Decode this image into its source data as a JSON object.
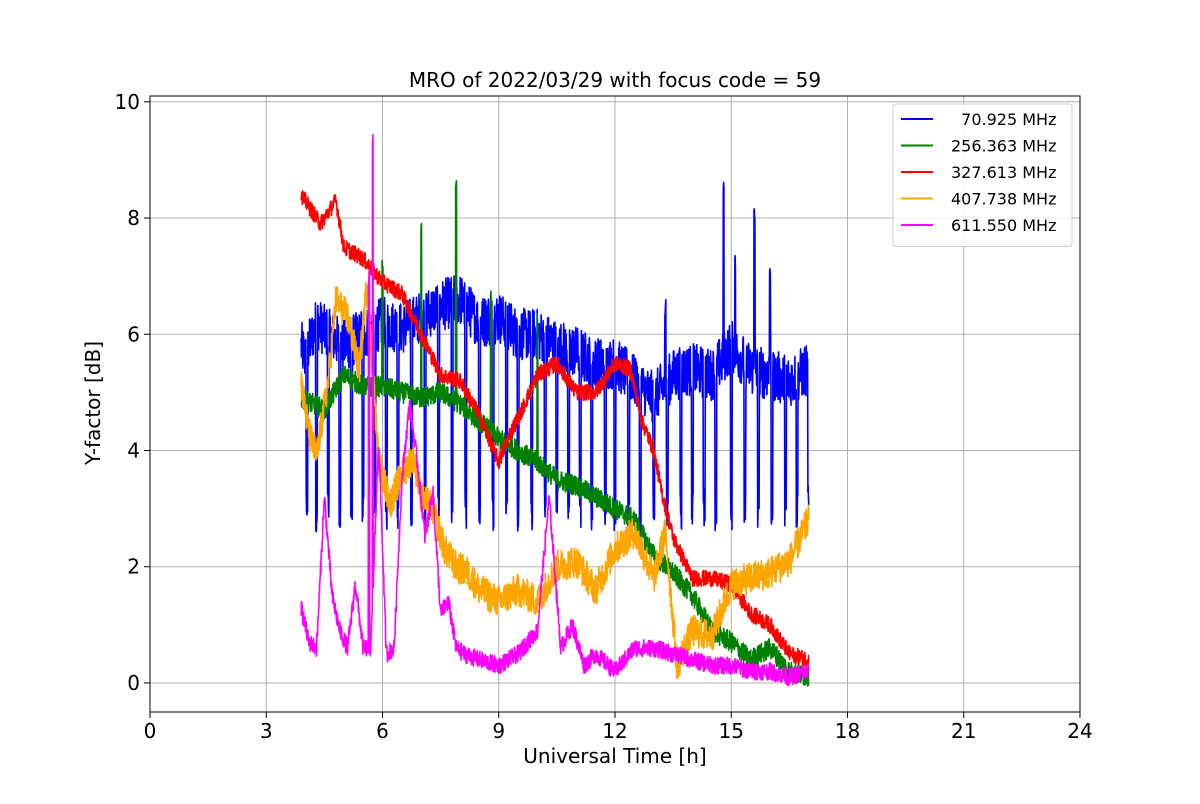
{
  "chart_data": {
    "type": "line",
    "title": "MRO of 2022/03/29 with focus code = 59",
    "xlabel": "Universal Time [h]",
    "ylabel": "Y-factor [dB]",
    "xlim": [
      0,
      24
    ],
    "ylim": [
      -0.5,
      10.1
    ],
    "xticks": [
      0,
      3,
      6,
      9,
      12,
      15,
      18,
      21,
      24
    ],
    "yticks": [
      0,
      2,
      4,
      6,
      8,
      10
    ],
    "xtick_labels": [
      "0",
      "3",
      "6",
      "9",
      "12",
      "15",
      "18",
      "21",
      "24"
    ],
    "ytick_labels": [
      "0",
      "2",
      "4",
      "6",
      "8",
      "10"
    ],
    "grid": true,
    "legend_position": "top-right",
    "series": [
      {
        "name": "  70.925 MHz",
        "color": "#0000ff",
        "x": [
          3.9,
          4.0,
          4.3,
          4.6,
          5.0,
          5.5,
          6.0,
          6.5,
          7.0,
          7.5,
          8.0,
          8.5,
          9.0,
          9.5,
          10.0,
          10.5,
          11.0,
          11.5,
          12.0,
          12.5,
          13.0,
          13.5,
          14.0,
          14.5,
          15.0,
          15.5,
          16.0,
          16.5,
          17.0
        ],
        "values": [
          5.8,
          5.6,
          6.2,
          6.0,
          5.8,
          6.0,
          6.2,
          6.1,
          6.3,
          6.5,
          6.6,
          6.2,
          6.3,
          6.0,
          6.0,
          5.8,
          5.7,
          5.5,
          5.5,
          5.2,
          4.9,
          5.3,
          5.4,
          5.3,
          5.8,
          5.4,
          5.3,
          5.2,
          5.4
        ],
        "dips": [
          4.05,
          4.3,
          4.6,
          4.9,
          5.2,
          5.5,
          5.8,
          6.1,
          6.4,
          6.75,
          7.1,
          7.45,
          7.8,
          8.15,
          8.5,
          8.85,
          9.2,
          9.5,
          9.85,
          10.2,
          10.5,
          10.8,
          11.1,
          11.4,
          11.75,
          12.0,
          12.35,
          12.65,
          13.0,
          13.35,
          13.7,
          14.0,
          14.3,
          14.6,
          15.0,
          15.35,
          15.7,
          16.05,
          16.4,
          16.7,
          17.0
        ],
        "spikes": [
          {
            "x": 14.8,
            "y": 8.7
          },
          {
            "x": 15.6,
            "y": 8.2
          },
          {
            "x": 15.1,
            "y": 7.4
          },
          {
            "x": 16.0,
            "y": 7.2
          },
          {
            "x": 13.3,
            "y": 6.6
          }
        ]
      },
      {
        "name": "256.363 MHz",
        "color": "#008000",
        "x": [
          3.9,
          4.2,
          4.5,
          5.0,
          5.5,
          6.0,
          6.5,
          7.0,
          7.5,
          8.0,
          8.5,
          9.0,
          9.5,
          10.0,
          10.5,
          11.0,
          11.5,
          12.0,
          12.5,
          13.0,
          13.5,
          14.0,
          14.5,
          15.0,
          15.5,
          16.0,
          16.5,
          17.0
        ],
        "values": [
          4.9,
          4.8,
          4.7,
          5.3,
          5.1,
          5.1,
          5.0,
          4.9,
          5.0,
          4.8,
          4.5,
          4.2,
          4.0,
          3.8,
          3.5,
          3.4,
          3.2,
          3.0,
          2.8,
          2.2,
          1.9,
          1.5,
          0.9,
          0.7,
          0.4,
          0.6,
          0.2,
          0.1
        ],
        "spikes": [
          {
            "x": 6.0,
            "y": 7.4
          },
          {
            "x": 7.0,
            "y": 8.0
          },
          {
            "x": 7.9,
            "y": 8.7
          },
          {
            "x": 8.8,
            "y": 6.8
          },
          {
            "x": 10.0,
            "y": 6.4
          }
        ]
      },
      {
        "name": "327.613 MHz",
        "color": "#ff0000",
        "x": [
          3.9,
          4.1,
          4.4,
          4.6,
          4.8,
          5.0,
          5.5,
          6.0,
          6.5,
          7.0,
          7.5,
          8.0,
          8.5,
          9.0,
          9.3,
          9.6,
          10.0,
          10.5,
          11.0,
          11.5,
          12.0,
          12.4,
          12.7,
          13.0,
          13.2,
          13.5,
          14.0,
          14.5,
          15.0,
          15.5,
          16.0,
          16.5,
          17.0
        ],
        "values": [
          8.4,
          8.2,
          7.9,
          8.1,
          8.3,
          7.5,
          7.3,
          6.9,
          6.7,
          6.0,
          5.3,
          5.2,
          4.6,
          3.8,
          4.3,
          4.7,
          5.3,
          5.5,
          5.0,
          5.0,
          5.5,
          5.4,
          4.5,
          4.0,
          3.3,
          2.5,
          1.8,
          1.8,
          1.7,
          1.2,
          1.0,
          0.5,
          0.4
        ]
      },
      {
        "name": "407.738 MHz",
        "color": "#ffa500",
        "x": [
          3.9,
          4.1,
          4.3,
          4.6,
          4.8,
          5.1,
          5.4,
          5.6,
          5.9,
          6.2,
          6.5,
          6.8,
          7.0,
          7.3,
          7.6,
          7.9,
          8.2,
          8.5,
          9.0,
          9.5,
          10.0,
          10.5,
          11.0,
          11.5,
          12.0,
          12.5,
          13.0,
          13.3,
          13.6,
          14.0,
          14.5,
          15.0,
          15.5,
          16.0,
          16.5,
          17.0
        ],
        "values": [
          5.2,
          4.3,
          3.9,
          5.2,
          6.6,
          6.3,
          5.4,
          6.9,
          3.8,
          3.1,
          3.6,
          3.9,
          3.2,
          3.0,
          2.3,
          2.0,
          1.9,
          1.6,
          1.4,
          1.6,
          1.4,
          2.0,
          2.1,
          1.6,
          2.3,
          2.6,
          1.8,
          2.6,
          0.3,
          0.9,
          0.8,
          1.7,
          1.8,
          1.9,
          2.1,
          2.8
        ]
      },
      {
        "name": "611.550 MHz",
        "color": "#ff00ff",
        "x": [
          3.9,
          4.1,
          4.3,
          4.5,
          4.7,
          4.9,
          5.1,
          5.3,
          5.5,
          5.7,
          5.9,
          6.1,
          6.3,
          6.5,
          6.7,
          6.9,
          7.1,
          7.3,
          7.5,
          7.7,
          7.9,
          8.1,
          8.5,
          9.0,
          9.5,
          10.0,
          10.3,
          10.6,
          10.9,
          11.2,
          11.5,
          12.0,
          12.5,
          13.0,
          13.5,
          14.0,
          14.5,
          15.0,
          15.5,
          16.0,
          16.5,
          17.0
        ],
        "values": [
          1.3,
          0.7,
          0.6,
          3.2,
          1.5,
          0.9,
          0.6,
          1.7,
          0.6,
          0.6,
          4.2,
          0.5,
          0.6,
          3.5,
          4.8,
          3.8,
          2.5,
          3.3,
          1.2,
          1.4,
          0.6,
          0.5,
          0.4,
          0.3,
          0.5,
          0.9,
          3.2,
          0.6,
          1.0,
          0.3,
          0.5,
          0.2,
          0.6,
          0.6,
          0.5,
          0.4,
          0.3,
          0.3,
          0.2,
          0.2,
          0.1,
          0.2
        ],
        "spikes": [
          {
            "x": 5.75,
            "y": 9.6
          },
          {
            "x": 5.65,
            "y": 7.2
          }
        ]
      }
    ]
  }
}
